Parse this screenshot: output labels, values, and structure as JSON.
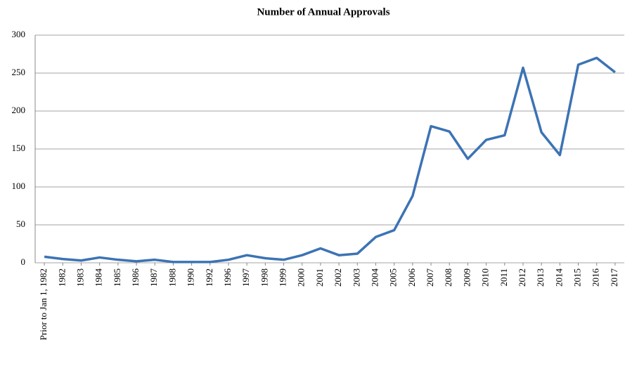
{
  "chart_data": {
    "type": "line",
    "title": "Number of Annual Approvals",
    "categories": [
      "Prior to Jan 1, 1982",
      "1982",
      "1983",
      "1984",
      "1985",
      "1986",
      "1987",
      "1988",
      "1990",
      "1992",
      "1996",
      "1997",
      "1998",
      "1999",
      "2000",
      "2001",
      "2002",
      "2003",
      "2004",
      "2005",
      "2006",
      "2007",
      "2008",
      "2009",
      "2010",
      "2011",
      "2012",
      "2013",
      "2014",
      "2015",
      "2016",
      "2017"
    ],
    "series": [
      {
        "name": "Approvals",
        "color": "#3c73b4",
        "values": [
          8,
          5,
          3,
          7,
          4,
          2,
          4,
          1,
          1,
          1,
          4,
          10,
          6,
          4,
          10,
          19,
          10,
          12,
          34,
          43,
          88,
          180,
          173,
          137,
          162,
          168,
          257,
          172,
          142,
          261,
          270,
          251
        ]
      }
    ],
    "ylim": [
      0,
      300
    ],
    "yticks": [
      0,
      50,
      100,
      150,
      200,
      250,
      300
    ],
    "grid": true
  }
}
